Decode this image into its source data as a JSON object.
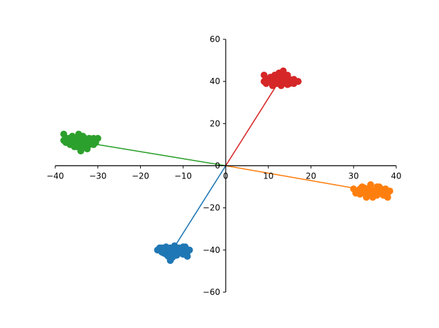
{
  "chart_data": {
    "type": "scatter",
    "title": "",
    "xlabel": "",
    "ylabel": "",
    "xlim": [
      -40,
      40
    ],
    "ylim": [
      -60,
      60
    ],
    "x_ticks": [
      -40,
      -30,
      -20,
      -10,
      0,
      10,
      20,
      30,
      40
    ],
    "y_ticks": [
      -60,
      -40,
      -20,
      0,
      20,
      40,
      60
    ],
    "x_tick_labels": [
      "−40",
      "−30",
      "−20",
      "−10",
      "0",
      "10",
      "20",
      "30",
      "40"
    ],
    "y_tick_labels": [
      "−60",
      "−40",
      "−20",
      "0",
      "20",
      "40",
      "60"
    ],
    "spines": "centered at origin",
    "grid": false,
    "legend": "none",
    "series": [
      {
        "color": "#1f77b4",
        "line_to": [
          -12.5,
          -40
        ],
        "points": [
          [
            -16,
            -40
          ],
          [
            -15.5,
            -39
          ],
          [
            -15,
            -41
          ],
          [
            -14.5,
            -40
          ],
          [
            -14,
            -38.5
          ],
          [
            -14,
            -42
          ],
          [
            -13.5,
            -40
          ],
          [
            -13,
            -39
          ],
          [
            -13,
            -41.5
          ],
          [
            -13,
            -45
          ],
          [
            -12.5,
            -40
          ],
          [
            -12,
            -38
          ],
          [
            -12,
            -42
          ],
          [
            -11.5,
            -40.5
          ],
          [
            -11,
            -39
          ],
          [
            -11,
            -41
          ],
          [
            -10.5,
            -40
          ],
          [
            -10,
            -38.5
          ],
          [
            -10,
            -42
          ],
          [
            -9.5,
            -40
          ],
          [
            -9,
            -41
          ],
          [
            -9,
            -43
          ],
          [
            -8.5,
            -40
          ],
          [
            -13.5,
            -43
          ],
          [
            -14.5,
            -41.5
          ],
          [
            -12.5,
            -43.5
          ],
          [
            -11.5,
            -42.5
          ],
          [
            -15,
            -39
          ],
          [
            -10.5,
            -41.5
          ],
          [
            -12,
            -39.5
          ],
          [
            -9.5,
            -38.5
          ]
        ]
      },
      {
        "color": "#ff7f0e",
        "line_to": [
          34,
          -12
        ],
        "points": [
          [
            30,
            -11
          ],
          [
            30.5,
            -13
          ],
          [
            31,
            -12
          ],
          [
            31.5,
            -11
          ],
          [
            32,
            -13
          ],
          [
            32,
            -10
          ],
          [
            32.5,
            -12
          ],
          [
            33,
            -11
          ],
          [
            33,
            -13.5
          ],
          [
            33.5,
            -12
          ],
          [
            34,
            -9
          ],
          [
            34,
            -11
          ],
          [
            34.5,
            -13
          ],
          [
            34.5,
            -15
          ],
          [
            35,
            -12
          ],
          [
            35.5,
            -10
          ],
          [
            35.5,
            -14
          ],
          [
            36,
            -12
          ],
          [
            36.5,
            -11
          ],
          [
            36.5,
            -13
          ],
          [
            37,
            -12
          ],
          [
            37.5,
            -11
          ],
          [
            38,
            -13
          ],
          [
            38,
            -15
          ],
          [
            38.5,
            -12
          ],
          [
            33,
            -15
          ],
          [
            35,
            -13.5
          ],
          [
            36,
            -10
          ],
          [
            31.5,
            -13.5
          ],
          [
            37,
            -14
          ],
          [
            34,
            -14
          ],
          [
            32.5,
            -10.5
          ]
        ]
      },
      {
        "color": "#2ca02c",
        "line_to": [
          -33,
          11
        ],
        "points": [
          [
            -38,
            15
          ],
          [
            -38,
            12
          ],
          [
            -37.5,
            11
          ],
          [
            -37,
            13
          ],
          [
            -36.5,
            10
          ],
          [
            -36,
            12
          ],
          [
            -36,
            14
          ],
          [
            -35.5,
            9
          ],
          [
            -35,
            11
          ],
          [
            -35,
            13
          ],
          [
            -34.5,
            10
          ],
          [
            -34.5,
            15
          ],
          [
            -34,
            12
          ],
          [
            -34,
            8
          ],
          [
            -33.5,
            11
          ],
          [
            -33.5,
            14
          ],
          [
            -33,
            9
          ],
          [
            -33,
            13
          ],
          [
            -32.5,
            11
          ],
          [
            -32,
            10
          ],
          [
            -32,
            13
          ],
          [
            -31.5,
            12
          ],
          [
            -31,
            10
          ],
          [
            -31,
            13
          ],
          [
            -30.5,
            11
          ],
          [
            -30,
            13
          ],
          [
            -32.5,
            8
          ],
          [
            -35,
            9
          ],
          [
            -36.5,
            12
          ],
          [
            -33,
            12
          ],
          [
            -34,
            7
          ],
          [
            -37,
            11
          ]
        ]
      },
      {
        "color": "#d62728",
        "line_to": [
          12.5,
          40
        ],
        "points": [
          [
            9,
            43
          ],
          [
            9,
            40
          ],
          [
            9.5,
            39
          ],
          [
            10,
            41
          ],
          [
            10.5,
            40
          ],
          [
            10.5,
            42
          ],
          [
            11,
            38
          ],
          [
            11,
            40
          ],
          [
            11.5,
            43
          ],
          [
            11.5,
            41
          ],
          [
            12,
            39
          ],
          [
            12,
            42
          ],
          [
            12.5,
            40
          ],
          [
            12.5,
            44
          ],
          [
            13,
            38
          ],
          [
            13,
            41
          ],
          [
            13.5,
            45
          ],
          [
            13.5,
            39
          ],
          [
            14,
            42
          ],
          [
            14,
            40
          ],
          [
            14.5,
            38.5
          ],
          [
            14.5,
            43
          ],
          [
            15,
            41
          ],
          [
            15,
            39
          ],
          [
            15.5,
            40
          ],
          [
            16,
            41
          ],
          [
            16,
            39
          ],
          [
            17,
            40
          ],
          [
            11,
            41.5
          ],
          [
            13,
            43
          ],
          [
            14,
            41
          ],
          [
            12,
            40.5
          ]
        ]
      }
    ]
  }
}
